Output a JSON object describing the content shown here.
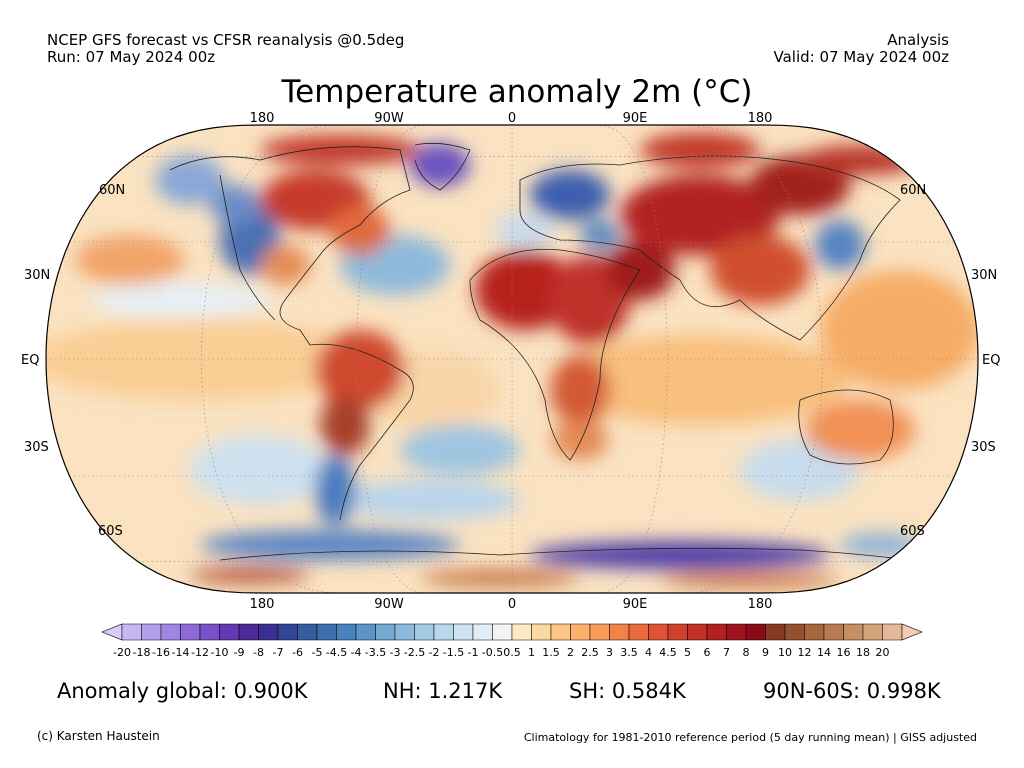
{
  "header": {
    "line1_left": "NCEP GFS forecast vs CFSR reanalysis @0.5deg",
    "line2_left": "Run: 07 May 2024 00z",
    "line1_right": "Analysis",
    "line2_right": "Valid: 07 May 2024 00z"
  },
  "title": "Temperature anomaly 2m (°C)",
  "map": {
    "projection": "Robinson",
    "lon_labels_top": [
      "180",
      "90W",
      "0",
      "90E",
      "180"
    ],
    "lon_labels_bottom": [
      "180",
      "90W",
      "0",
      "90E",
      "180"
    ],
    "lat_labels_left": [
      "60N",
      "30N",
      "EQ",
      "30S",
      "60S"
    ],
    "lat_labels_right": [
      "60N",
      "30N",
      "EQ",
      "30S",
      "60S"
    ]
  },
  "colorbar": {
    "labels": [
      "-20",
      "-18",
      "-16",
      "-14",
      "-12",
      "-10",
      "-9",
      "-8",
      "-7",
      "-6",
      "-5",
      "-4.5",
      "-4",
      "-3.5",
      "-3",
      "-2.5",
      "-2",
      "-1.5",
      "-1",
      "-0.5",
      "0.5",
      "1",
      "1.5",
      "2",
      "2.5",
      "3",
      "3.5",
      "4",
      "4.5",
      "5",
      "6",
      "7",
      "8",
      "9",
      "10",
      "12",
      "14",
      "16",
      "18",
      "20"
    ],
    "colors": [
      "#c6b7f2",
      "#b3a0ec",
      "#a086e3",
      "#8d6ad8",
      "#7850c8",
      "#6338b2",
      "#4e2a9a",
      "#3a2f92",
      "#344595",
      "#365e9f",
      "#3b6fae",
      "#4a83bc",
      "#5c96c8",
      "#72a8d2",
      "#8bbadc",
      "#a3cae5",
      "#b9d8ec",
      "#cfe4f2",
      "#e2eef7",
      "#f4f4f4",
      "#fde8c4",
      "#fcd9a3",
      "#fcc685",
      "#fbb06b",
      "#f89a58",
      "#f2814a",
      "#e96a3f",
      "#de5435",
      "#d1422d",
      "#c23026",
      "#b22021",
      "#a0131c",
      "#8a0a15",
      "#873a25",
      "#95502f",
      "#a6673e",
      "#b67b50",
      "#c68f63",
      "#d5a47a",
      "#e4b99a"
    ],
    "under_color": "#d8cdf6",
    "over_color": "#f2ccb8"
  },
  "stats": {
    "global": "Anomaly global: 0.900K",
    "nh": "NH: 1.217K",
    "sh": "SH: 0.584K",
    "arctic": "90N-60S: 0.998K"
  },
  "footer": {
    "left": "(c) Karsten Haustein",
    "right": "Climatology for 1981-2010 reference period (5 day running mean) | GISS adjusted"
  }
}
